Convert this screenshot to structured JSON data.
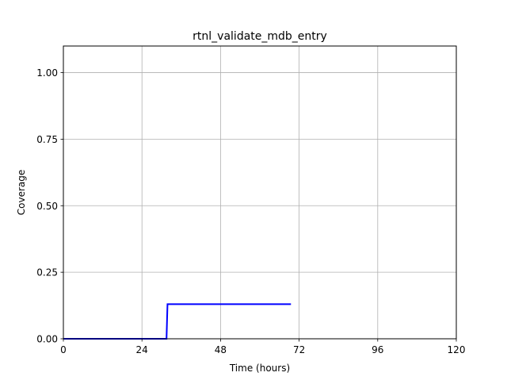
{
  "chart_data": {
    "type": "line",
    "title": "rtnl_validate_mdb_entry",
    "xlabel": "Time (hours)",
    "ylabel": "Coverage",
    "xlim": [
      0,
      120
    ],
    "ylim": [
      0,
      1.1
    ],
    "x_ticks": [
      0,
      24,
      48,
      72,
      96,
      120
    ],
    "x_tick_labels": [
      "0",
      "24",
      "48",
      "72",
      "96",
      "120"
    ],
    "y_ticks": [
      0,
      0.25,
      0.5,
      0.75,
      1.0
    ],
    "y_tick_labels": [
      "0.00",
      "0.25",
      "0.50",
      "0.75",
      "1.00"
    ],
    "grid": true,
    "legend": "none",
    "series": [
      {
        "color": "#0000ff",
        "x": [
          0,
          31.5,
          31.8,
          69.5
        ],
        "y": [
          0,
          0,
          0.13,
          0.13
        ]
      }
    ]
  }
}
